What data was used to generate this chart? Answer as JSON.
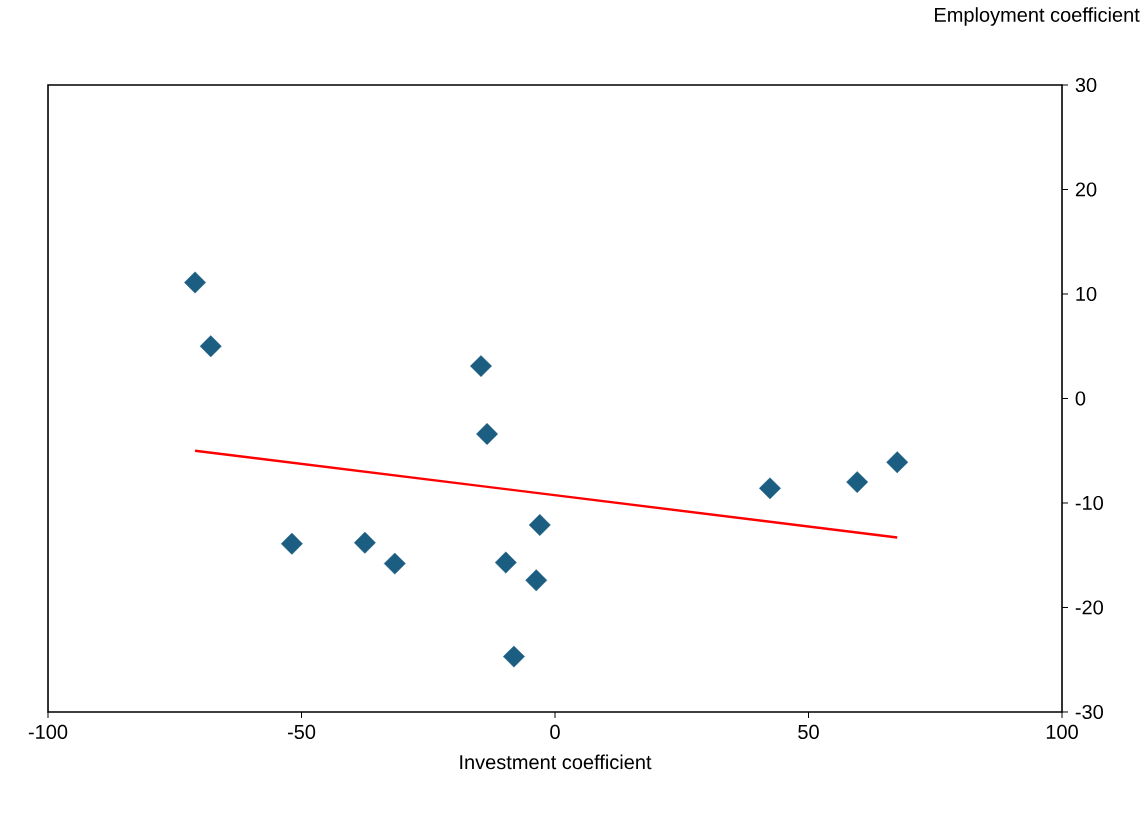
{
  "chart_data": {
    "type": "scatter",
    "xlabel": "Investment coefficient",
    "ylabel": "Employment coefficient",
    "xlim": [
      -100,
      100
    ],
    "ylim": [
      -30,
      30
    ],
    "xticks": [
      -100,
      -50,
      0,
      50,
      100
    ],
    "yticks": [
      -30,
      -20,
      -10,
      0,
      10,
      20,
      30
    ],
    "grid": false,
    "series": [
      {
        "type": "scatter",
        "color": "#1b5e82",
        "marker": "diamond",
        "x": [
          -71.0,
          -67.9,
          -51.9,
          -37.5,
          -31.6,
          -14.6,
          -13.4,
          -9.7,
          -8.1,
          -3.7,
          -3.0,
          42.4,
          59.6,
          67.5
        ],
        "values": [
          11.1,
          5.0,
          -13.9,
          -13.8,
          -15.8,
          3.1,
          -3.4,
          -15.7,
          -24.7,
          -17.4,
          -12.1,
          -8.6,
          -8.0,
          -6.1
        ]
      },
      {
        "type": "line",
        "color": "#ff0000",
        "line_style": "solid",
        "marker": "none",
        "x": [
          -71.0,
          67.5
        ],
        "values": [
          -5.0,
          -13.3
        ]
      }
    ]
  }
}
